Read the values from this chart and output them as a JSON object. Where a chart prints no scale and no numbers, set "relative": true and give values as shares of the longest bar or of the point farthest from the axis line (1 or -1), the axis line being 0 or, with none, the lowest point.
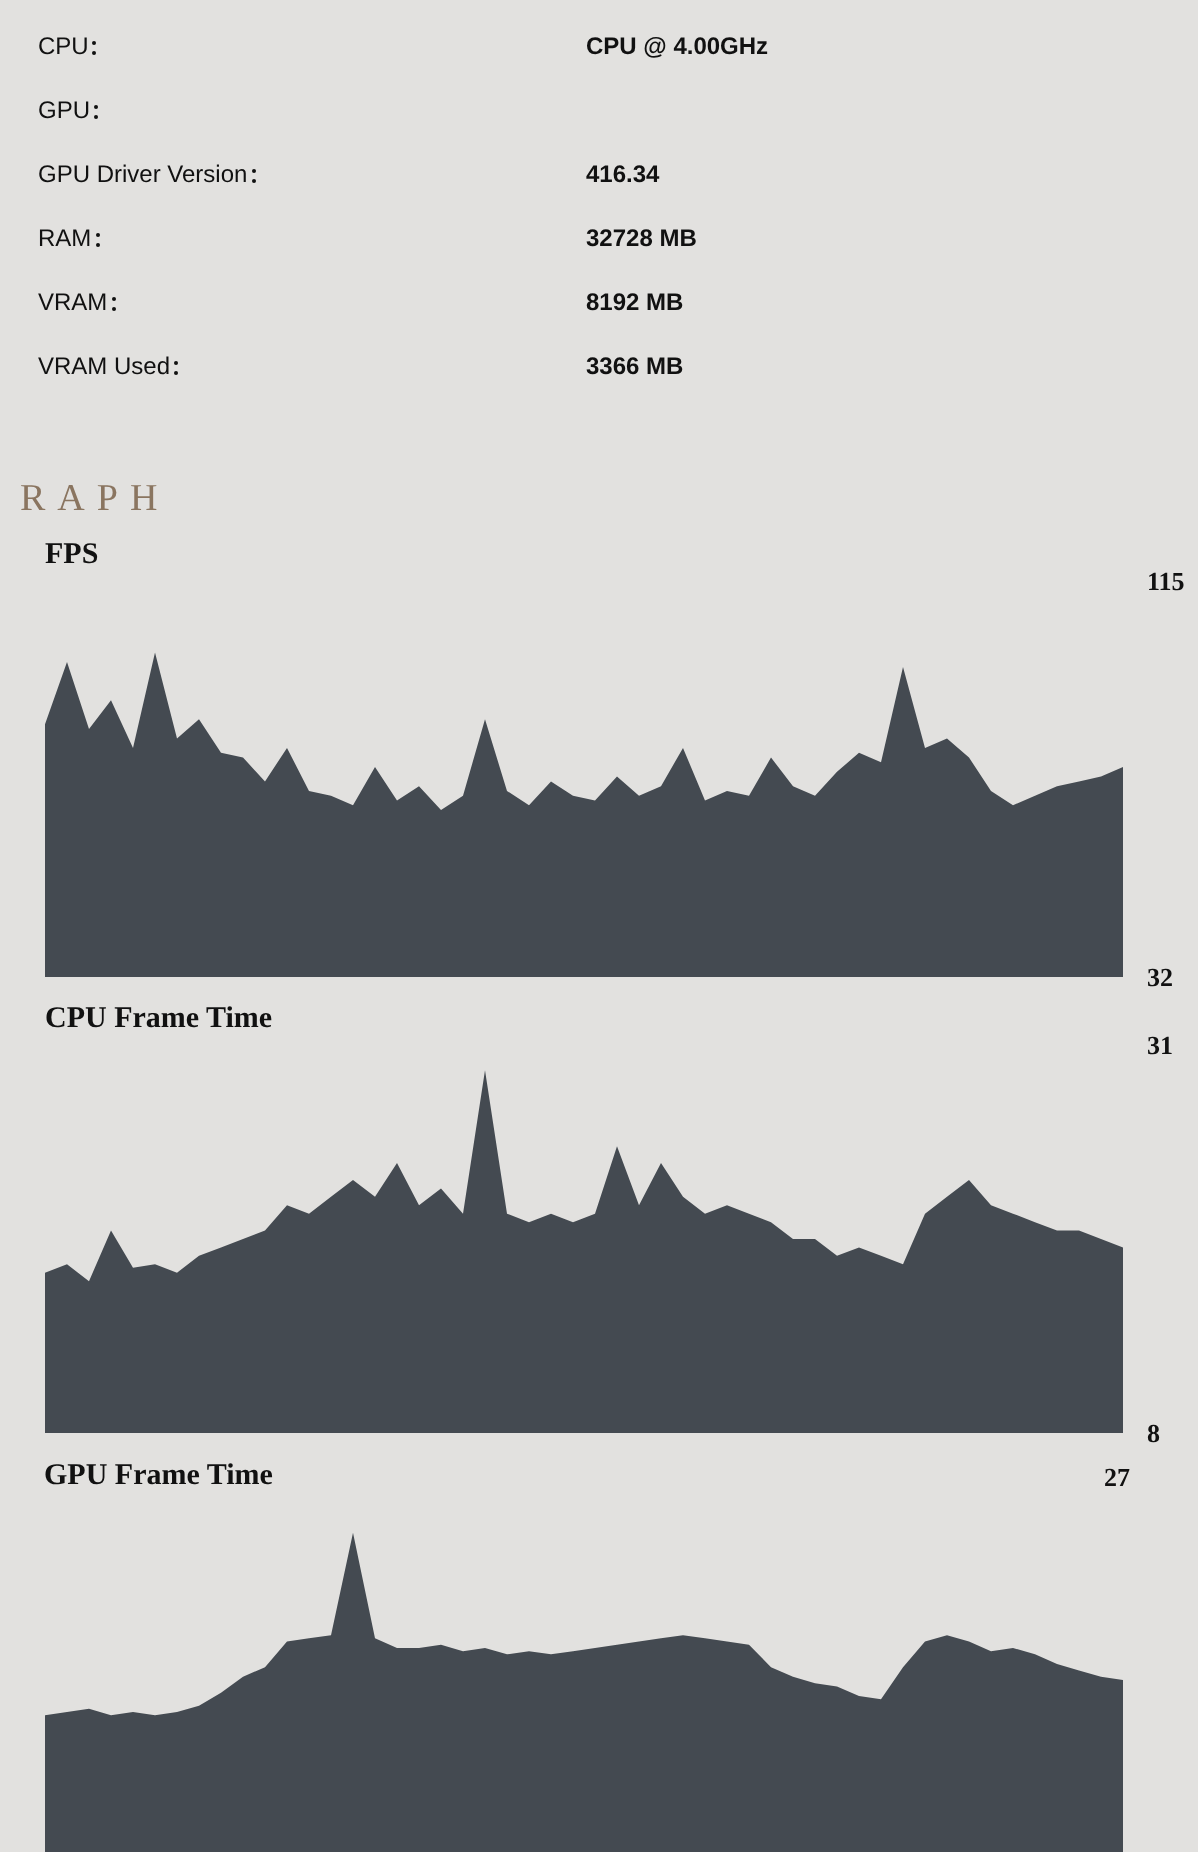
{
  "chart_data": [
    {
      "type": "other",
      "categories": [
        "CPU",
        "GPU",
        "GPU Driver Version",
        "RAM",
        "VRAM",
        "VRAM Used"
      ],
      "value_labels": [
        "CPU @ 4.00GHz",
        null,
        "416.34",
        "32728 MB",
        "8192 MB",
        "3366 MB"
      ],
      "annotations": [
        "RAPH"
      ]
    },
    {
      "type": "area",
      "title": "FPS",
      "color": "#444a51",
      "ylim": [
        32,
        115
      ],
      "yticks": [
        32,
        115
      ],
      "categories": [
        null,
        null,
        null,
        null,
        null,
        null,
        null,
        null,
        null,
        null,
        null,
        null,
        null,
        null,
        null,
        null,
        null,
        null,
        null,
        null,
        null,
        null,
        null,
        null,
        null,
        null,
        null,
        null,
        null,
        null,
        null,
        null,
        null,
        null,
        null,
        null,
        null,
        null,
        null,
        null,
        null,
        null,
        null,
        null,
        null,
        null,
        null,
        null,
        null,
        null
      ],
      "values": [
        85,
        98,
        84,
        90,
        80,
        100,
        82,
        86,
        79,
        78,
        73,
        80,
        71,
        70,
        68,
        76,
        69,
        72,
        67,
        70,
        86,
        71,
        68,
        73,
        70,
        69,
        74,
        70,
        72,
        80,
        69,
        71,
        70,
        78,
        72,
        70,
        75,
        79,
        77,
        97,
        80,
        82,
        78,
        71,
        68,
        70,
        72,
        73,
        74,
        76
      ]
    },
    {
      "type": "area",
      "title": "CPU Frame Time",
      "color": "#444a51",
      "ylim": [
        8,
        31
      ],
      "yticks": [
        8,
        31
      ],
      "categories": [
        null,
        null,
        null,
        null,
        null,
        null,
        null,
        null,
        null,
        null,
        null,
        null,
        null,
        null,
        null,
        null,
        null,
        null,
        null,
        null,
        null,
        null,
        null,
        null,
        null,
        null,
        null,
        null,
        null,
        null,
        null,
        null,
        null,
        null,
        null,
        null,
        null,
        null,
        null,
        null,
        null,
        null,
        null,
        null,
        null,
        null,
        null,
        null,
        null,
        null
      ],
      "values": [
        17.5,
        18,
        17,
        20,
        17.8,
        18,
        17.5,
        18.5,
        19,
        19.5,
        20,
        21.5,
        21,
        22,
        23,
        22,
        24,
        21.5,
        22.5,
        21,
        29.5,
        21,
        20.5,
        21,
        20.5,
        21,
        25,
        21.5,
        24,
        22,
        21,
        21.5,
        21,
        20.5,
        19.5,
        19.5,
        18.5,
        19,
        18.5,
        18,
        21,
        22,
        23,
        21.5,
        21,
        20.5,
        20,
        20,
        19.5,
        19
      ]
    },
    {
      "type": "area",
      "title": "GPU Frame Time",
      "color": "#444a51",
      "relative": true,
      "annotations": [
        "27"
      ],
      "categories": [
        null,
        null,
        null,
        null,
        null,
        null,
        null,
        null,
        null,
        null,
        null,
        null,
        null,
        null,
        null,
        null,
        null,
        null,
        null,
        null,
        null,
        null,
        null,
        null,
        null,
        null,
        null,
        null,
        null,
        null,
        null,
        null,
        null,
        null,
        null,
        null,
        null,
        null,
        null,
        null,
        null,
        null,
        null,
        null,
        null,
        null,
        null,
        null,
        null,
        null
      ],
      "values": [
        0.43,
        0.44,
        0.45,
        0.43,
        0.44,
        0.43,
        0.44,
        0.46,
        0.5,
        0.55,
        0.58,
        0.66,
        0.67,
        0.68,
        1.0,
        0.67,
        0.64,
        0.64,
        0.65,
        0.63,
        0.64,
        0.62,
        0.63,
        0.62,
        0.63,
        0.64,
        0.65,
        0.66,
        0.67,
        0.68,
        0.67,
        0.66,
        0.65,
        0.58,
        0.55,
        0.53,
        0.52,
        0.49,
        0.48,
        0.58,
        0.66,
        0.68,
        0.66,
        0.63,
        0.64,
        0.62,
        0.59,
        0.57,
        0.55,
        0.54
      ]
    }
  ]
}
